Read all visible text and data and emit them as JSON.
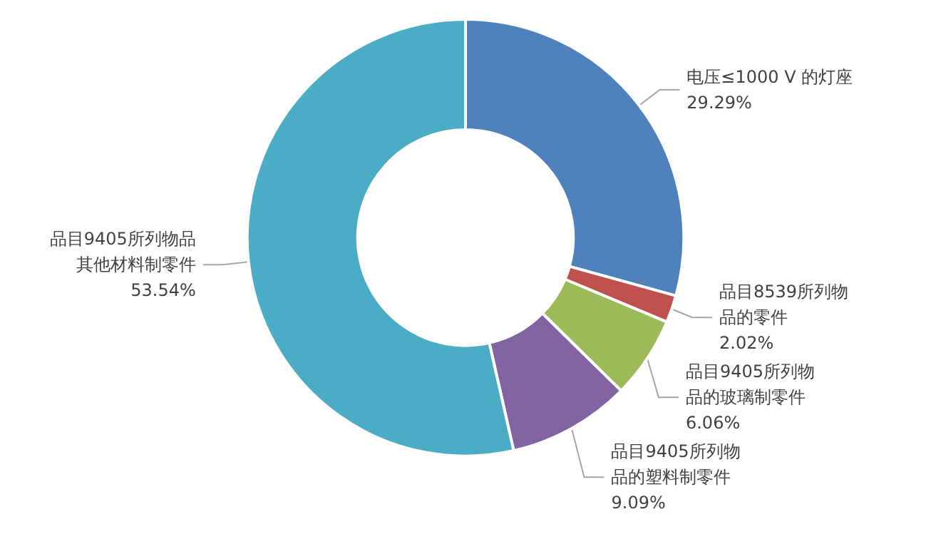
{
  "chart_data": {
    "type": "donut",
    "categories": [
      "电压≤1000 V 的灯座",
      "品目8539所列物品的零件",
      "品目9405所列物品的玻璃制零件",
      "品目9405所列物品的塑料制零件",
      "品目9405所列物品其他材料制零件"
    ],
    "values": [
      29.29,
      2.02,
      6.06,
      9.09,
      53.54
    ],
    "value_labels": [
      "29.29%",
      "2.02%",
      "6.06%",
      "9.09%",
      "53.54%"
    ],
    "colors": [
      "#4f81bd",
      "#c0504d",
      "#9bbb59",
      "#8064a2",
      "#4bacc6"
    ],
    "legend": false
  }
}
